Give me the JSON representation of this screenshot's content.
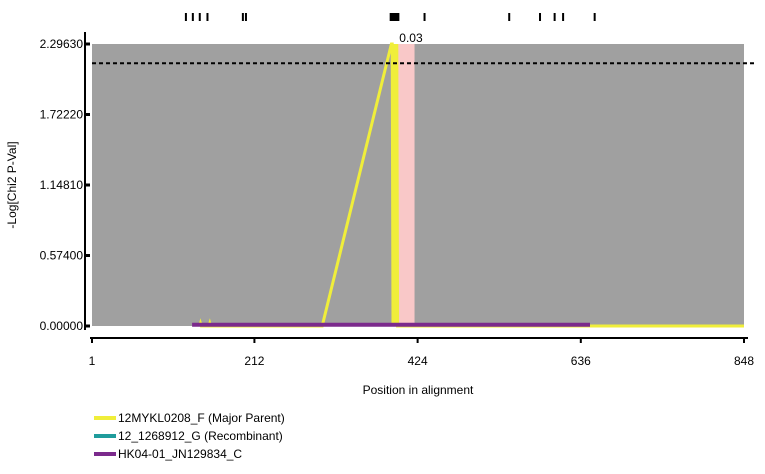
{
  "chart_data": {
    "type": "line",
    "xlabel": "Position in alignment",
    "ylabel": "-Log[Chi2 P-Val]",
    "xlim": [
      1,
      848
    ],
    "ylim": [
      0,
      2.2963
    ],
    "x_ticks": [
      1,
      212,
      424,
      636,
      848
    ],
    "y_ticks": [
      0,
      0.574,
      1.1481,
      1.7222,
      2.2963
    ],
    "y_tick_labels": [
      "0.00000",
      "0.57400",
      "1.14810",
      "1.72220",
      "2.29630"
    ],
    "x_tick_labels": [
      "1",
      "212",
      "424",
      "636",
      "848"
    ],
    "threshold": 2.14,
    "annotation": {
      "x": 395,
      "y": 2.2963,
      "text": "0.03"
    },
    "highlight_region": [
      396,
      420
    ],
    "site_ticks": [
      123,
      132,
      141,
      151,
      197,
      201,
      389,
      391,
      393,
      395,
      397,
      399,
      433,
      543,
      583,
      602,
      613,
      654
    ],
    "series": [
      {
        "name": "12MYKL0208_F (Major Parent)",
        "color": "#f0ee3a",
        "x": [
          141,
          142,
          143,
          153,
          154,
          155,
          300,
          390,
          391,
          392,
          393,
          394,
          395,
          396,
          397,
          398,
          399,
          400,
          648,
          848
        ],
        "y": [
          0,
          0.02,
          0,
          0,
          0.02,
          0,
          0,
          2.2963,
          2.2963,
          0,
          2.2963,
          0,
          2.2963,
          0,
          2.2963,
          0,
          0,
          0,
          0,
          0
        ]
      },
      {
        "name": "12_1268912_G (Recombinant)",
        "color": "#1f9c9c",
        "x": [],
        "y": []
      },
      {
        "name": "HK04-01_JN129834_C",
        "color": "#7b2a8c",
        "x": [
          131,
          142,
          154,
          391,
          400,
          648
        ],
        "y": [
          0.01,
          0.01,
          0.01,
          0.01,
          0.01,
          0.01
        ]
      }
    ]
  },
  "colors": {
    "plot_background": "#a0a0a0",
    "highlight": "#f9c8c8",
    "threshold": "#000000"
  }
}
